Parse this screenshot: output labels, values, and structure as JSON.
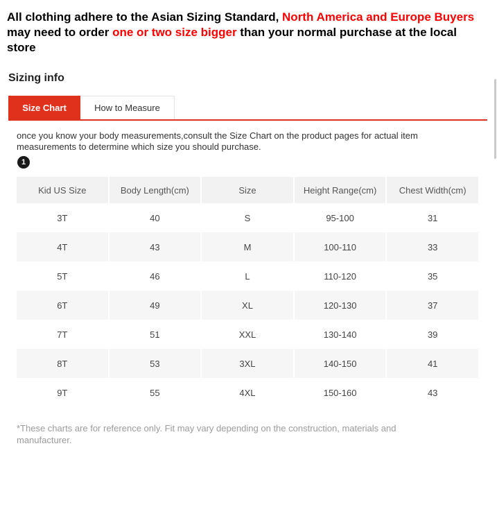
{
  "notice": {
    "segments": [
      {
        "text": "All clothing adhere to the Asian Sizing Standard, ",
        "highlight": false
      },
      {
        "text": "North America and Europe Buyers",
        "highlight": true
      },
      {
        "text": " may need to order ",
        "highlight": false
      },
      {
        "text": "one or two size bigger",
        "highlight": true
      },
      {
        "text": " than your normal purchase at the local store",
        "highlight": false
      }
    ]
  },
  "section_title": "Sizing info",
  "tabs": [
    {
      "label": "Size Chart",
      "active": true
    },
    {
      "label": "How to Measure",
      "active": false
    }
  ],
  "description": "once you know your body measurements,consult the Size Chart on the product pages for actual item measurements to determine which size you should purchase.",
  "step_badge": "1",
  "table": {
    "headers": [
      "Kid US Size",
      "Body Length(cm)",
      "Size",
      "Height Range(cm)",
      "Chest Width(cm)"
    ],
    "rows": [
      [
        "3T",
        "40",
        "S",
        "95-100",
        "31"
      ],
      [
        "4T",
        "43",
        "M",
        "100-110",
        "33"
      ],
      [
        "5T",
        "46",
        "L",
        "110-120",
        "35"
      ],
      [
        "6T",
        "49",
        "XL",
        "120-130",
        "37"
      ],
      [
        "7T",
        "51",
        "XXL",
        "130-140",
        "39"
      ],
      [
        "8T",
        "53",
        "3XL",
        "140-150",
        "41"
      ],
      [
        "9T",
        "55",
        "4XL",
        "150-160",
        "43"
      ]
    ]
  },
  "disclaimer": "*These charts are for reference only. Fit may vary depending on the construction, materials and manufacturer.",
  "colors": {
    "accent_red": "#e0311d",
    "highlight_red": "#fe0000"
  }
}
